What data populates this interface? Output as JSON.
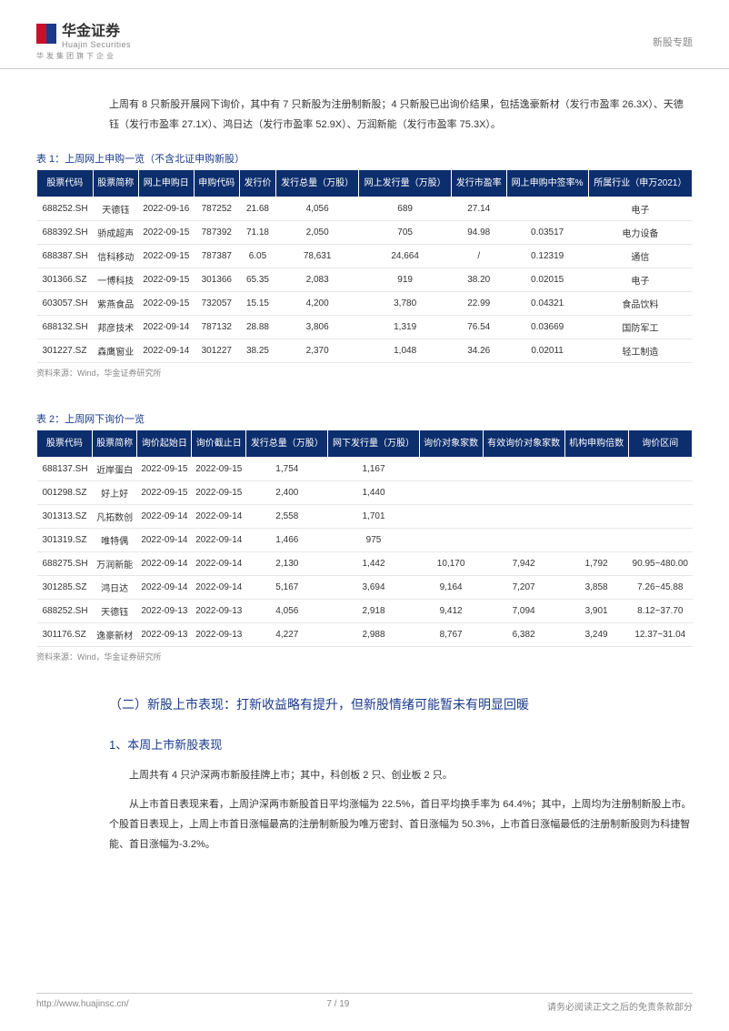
{
  "header": {
    "logo_main": "华金证券",
    "logo_sub": "Huajin Securities",
    "logo_bottom": "华发集团旗下企业",
    "topic": "新股专题"
  },
  "intro": "上周有 8 只新股开展网下询价，其中有 7 只新股为注册制新股；4 只新股已出询价结果，包括逸豪新材（发行市盈率 26.3X）、天德钰（发行市盈率 27.1X）、鸿日达（发行市盈率 52.9X）、万润新能（发行市盈率 75.3X）。",
  "table1": {
    "title": "表 1：上周网上申购一览（不含北证申购新股）",
    "headers": [
      "股票代码",
      "股票简称",
      "网上申购日",
      "申购代码",
      "发行价",
      "发行总量（万股）",
      "网上发行量（万股）",
      "发行市盈率",
      "网上申购中签率%",
      "所属行业（申万2021）"
    ],
    "rows": [
      [
        "688252.SH",
        "天德钰",
        "2022-09-16",
        "787252",
        "21.68",
        "4,056",
        "689",
        "27.14",
        "",
        "电子"
      ],
      [
        "688392.SH",
        "骄成超声",
        "2022-09-15",
        "787392",
        "71.18",
        "2,050",
        "705",
        "94.98",
        "0.03517",
        "电力设备"
      ],
      [
        "688387.SH",
        "信科移动",
        "2022-09-15",
        "787387",
        "6.05",
        "78,631",
        "24,664",
        "/",
        "0.12319",
        "通信"
      ],
      [
        "301366.SZ",
        "一博科技",
        "2022-09-15",
        "301366",
        "65.35",
        "2,083",
        "919",
        "38.20",
        "0.02015",
        "电子"
      ],
      [
        "603057.SH",
        "紫燕食品",
        "2022-09-15",
        "732057",
        "15.15",
        "4,200",
        "3,780",
        "22.99",
        "0.04321",
        "食品饮料"
      ],
      [
        "688132.SH",
        "邦彦技术",
        "2022-09-14",
        "787132",
        "28.88",
        "3,806",
        "1,319",
        "76.54",
        "0.03669",
        "国防军工"
      ],
      [
        "301227.SZ",
        "森鹰窗业",
        "2022-09-14",
        "301227",
        "38.25",
        "2,370",
        "1,048",
        "34.26",
        "0.02011",
        "轻工制造"
      ]
    ],
    "source": "资料来源：Wind，华金证券研究所"
  },
  "table2": {
    "title": "表 2：上周网下询价一览",
    "headers": [
      "股票代码",
      "股票简称",
      "询价起始日",
      "询价截止日",
      "发行总量（万股）",
      "网下发行量（万股）",
      "询价对象家数",
      "有效询价对象家数",
      "机构申购倍数",
      "询价区间"
    ],
    "rows": [
      [
        "688137.SH",
        "近岸蛋白",
        "2022-09-15",
        "2022-09-15",
        "1,754",
        "1,167",
        "",
        "",
        "",
        ""
      ],
      [
        "001298.SZ",
        "好上好",
        "2022-09-15",
        "2022-09-15",
        "2,400",
        "1,440",
        "",
        "",
        "",
        ""
      ],
      [
        "301313.SZ",
        "凡拓数创",
        "2022-09-14",
        "2022-09-14",
        "2,558",
        "1,701",
        "",
        "",
        "",
        ""
      ],
      [
        "301319.SZ",
        "唯特偶",
        "2022-09-14",
        "2022-09-14",
        "1,466",
        "975",
        "",
        "",
        "",
        ""
      ],
      [
        "688275.SH",
        "万润新能",
        "2022-09-14",
        "2022-09-14",
        "2,130",
        "1,442",
        "10,170",
        "7,942",
        "1,792",
        "90.95~480.00"
      ],
      [
        "301285.SZ",
        "鸿日达",
        "2022-09-14",
        "2022-09-14",
        "5,167",
        "3,694",
        "9,164",
        "7,207",
        "3,858",
        "7.26~45.88"
      ],
      [
        "688252.SH",
        "天德钰",
        "2022-09-13",
        "2022-09-13",
        "4,056",
        "2,918",
        "9,412",
        "7,094",
        "3,901",
        "8.12~37.70"
      ],
      [
        "301176.SZ",
        "逸豪新材",
        "2022-09-13",
        "2022-09-13",
        "4,227",
        "2,988",
        "8,767",
        "6,382",
        "3,249",
        "12.37~31.04"
      ]
    ],
    "source": "资料来源：Wind，华金证券研究所"
  },
  "section2": {
    "heading": "（二）新股上市表现：打新收益略有提升，但新股情绪可能暂未有明显回暖",
    "sub1_heading": "1、本周上市新股表现",
    "para1": "上周共有 4 只沪深两市新股挂牌上市；其中，科创板 2 只、创业板 2 只。",
    "para2": "从上市首日表现来看，上周沪深两市新股首日平均涨幅为 22.5%，首日平均换手率为 64.4%；其中，上周均为注册制新股上市。个股首日表现上，上周上市首日涨幅最高的注册制新股为唯万密封、首日涨幅为 50.3%，上市首日涨幅最低的注册制新股则为科捷智能、首日涨幅为-3.2%。"
  },
  "footer": {
    "url": "http://www.huajinsc.cn/",
    "page": "7 / 19",
    "disclaimer": "请务必阅读正文之后的免责条款部分"
  },
  "colors": {
    "header_bg": "#0d2e6d",
    "accent": "#1a3a8a",
    "text": "#333333",
    "muted": "#888888",
    "row_border": "#e8e8e8"
  }
}
